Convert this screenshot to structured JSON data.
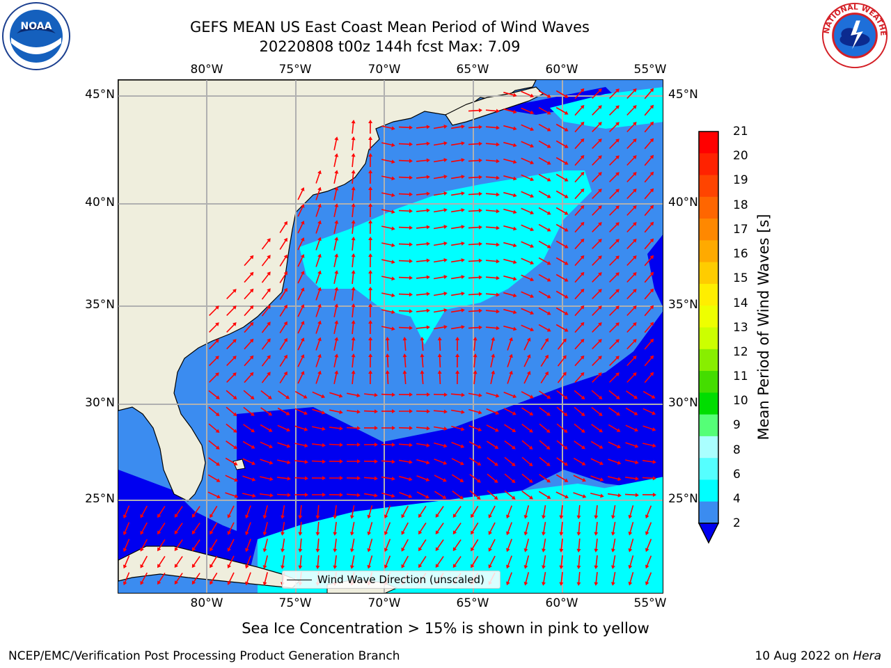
{
  "header": {
    "title_line1": "GEFS MEAN US East Coast Mean Period of Wind Waves",
    "title_line2": "20220808 t00z 144h fcst   Max: 7.09"
  },
  "logos": {
    "noaa_text": "NOAA",
    "nws_text": "NATIONAL WEATHER SERVICE"
  },
  "map": {
    "lon_ticks": [
      "80°W",
      "75°W",
      "70°W",
      "65°W",
      "60°W",
      "55°W"
    ],
    "lat_ticks": [
      "45°N",
      "40°N",
      "35°N",
      "30°N",
      "25°N"
    ],
    "land_color": "#efeedd",
    "ocean_colors": {
      "level_2_4": "#3b8cf0",
      "level_lt2": "#0000f0",
      "level_4_6": "#00ffff",
      "level_6_8": "#55fff5"
    },
    "arrow_color": "#ff0000",
    "legend_text": "Wind Wave Direction (unscaled)"
  },
  "colorbar": {
    "label": "Mean Period of Wind Waves [s]",
    "ticks": [
      "21",
      "20",
      "19",
      "18",
      "17",
      "16",
      "15",
      "14",
      "13",
      "12",
      "11",
      "10",
      "9",
      "8",
      "6",
      "4",
      "2"
    ],
    "colors": [
      "#ff0000",
      "#ff2200",
      "#ff4400",
      "#ff6600",
      "#ff8800",
      "#ffaa00",
      "#ffcc00",
      "#ffee00",
      "#eeff00",
      "#ccff00",
      "#88ee00",
      "#44dd00",
      "#00dd00",
      "#55ff77",
      "#aaffff",
      "#55ffff",
      "#00ffff",
      "#3b8cf0"
    ],
    "extend_color": "#0000f0"
  },
  "notes": {
    "ice": "Sea Ice Concentration > 15% is shown in pink to yellow",
    "footer_left": "NCEP/EMC/Verification Post Processing Product Generation Branch",
    "footer_date": "10 Aug 2022 on ",
    "footer_host": "Hera"
  }
}
